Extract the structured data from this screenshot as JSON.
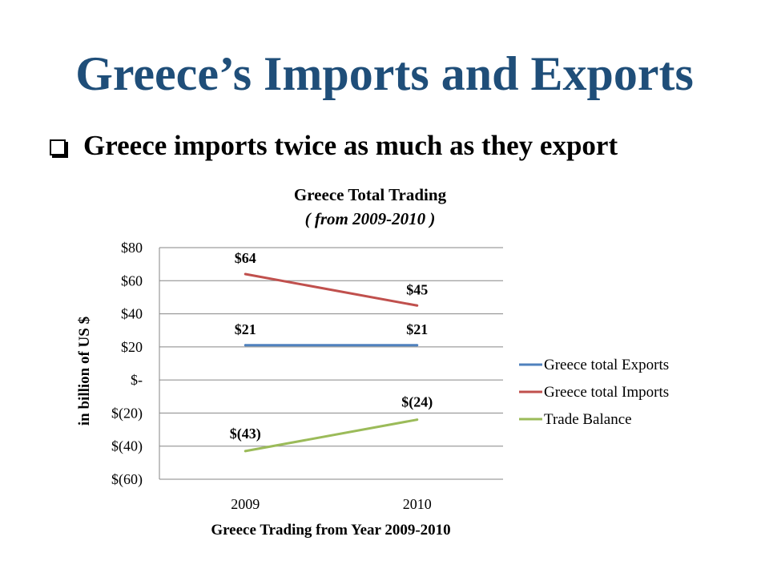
{
  "slide": {
    "title": "Greece’s Imports and Exports",
    "bullet_text": "Greece imports twice as much as they export"
  },
  "colors": {
    "title": "#1f4e79",
    "exports": "#4f81bd",
    "imports": "#c0504d",
    "balance": "#9bbb59",
    "grid": "#868686"
  },
  "chart_data": {
    "type": "line",
    "title": "Greece Total Trading",
    "subtitle": "( from 2009-2010 )",
    "xlabel": "Greece Trading from Year 2009-2010",
    "ylabel": "in billion of US $",
    "categories": [
      "2009",
      "2010"
    ],
    "ylim": [
      -60,
      80
    ],
    "yticks": [
      80,
      60,
      40,
      20,
      0,
      -20,
      -40,
      -60
    ],
    "ytick_labels": [
      "$80",
      "$60",
      "$40",
      "$20",
      "$-",
      "$(20)",
      "$(40)",
      "$(60)"
    ],
    "grid": true,
    "legend_position": "right",
    "series": [
      {
        "name": "Greece total Exports",
        "key": "exports",
        "values": [
          21,
          21
        ],
        "labels": [
          "$21",
          "$21"
        ]
      },
      {
        "name": "Greece total Imports",
        "key": "imports",
        "values": [
          64,
          45
        ],
        "labels": [
          "$64",
          "$45"
        ]
      },
      {
        "name": "Trade Balance",
        "key": "balance",
        "values": [
          -43,
          -24
        ],
        "labels": [
          "$(43)",
          "$(24)"
        ]
      }
    ]
  }
}
